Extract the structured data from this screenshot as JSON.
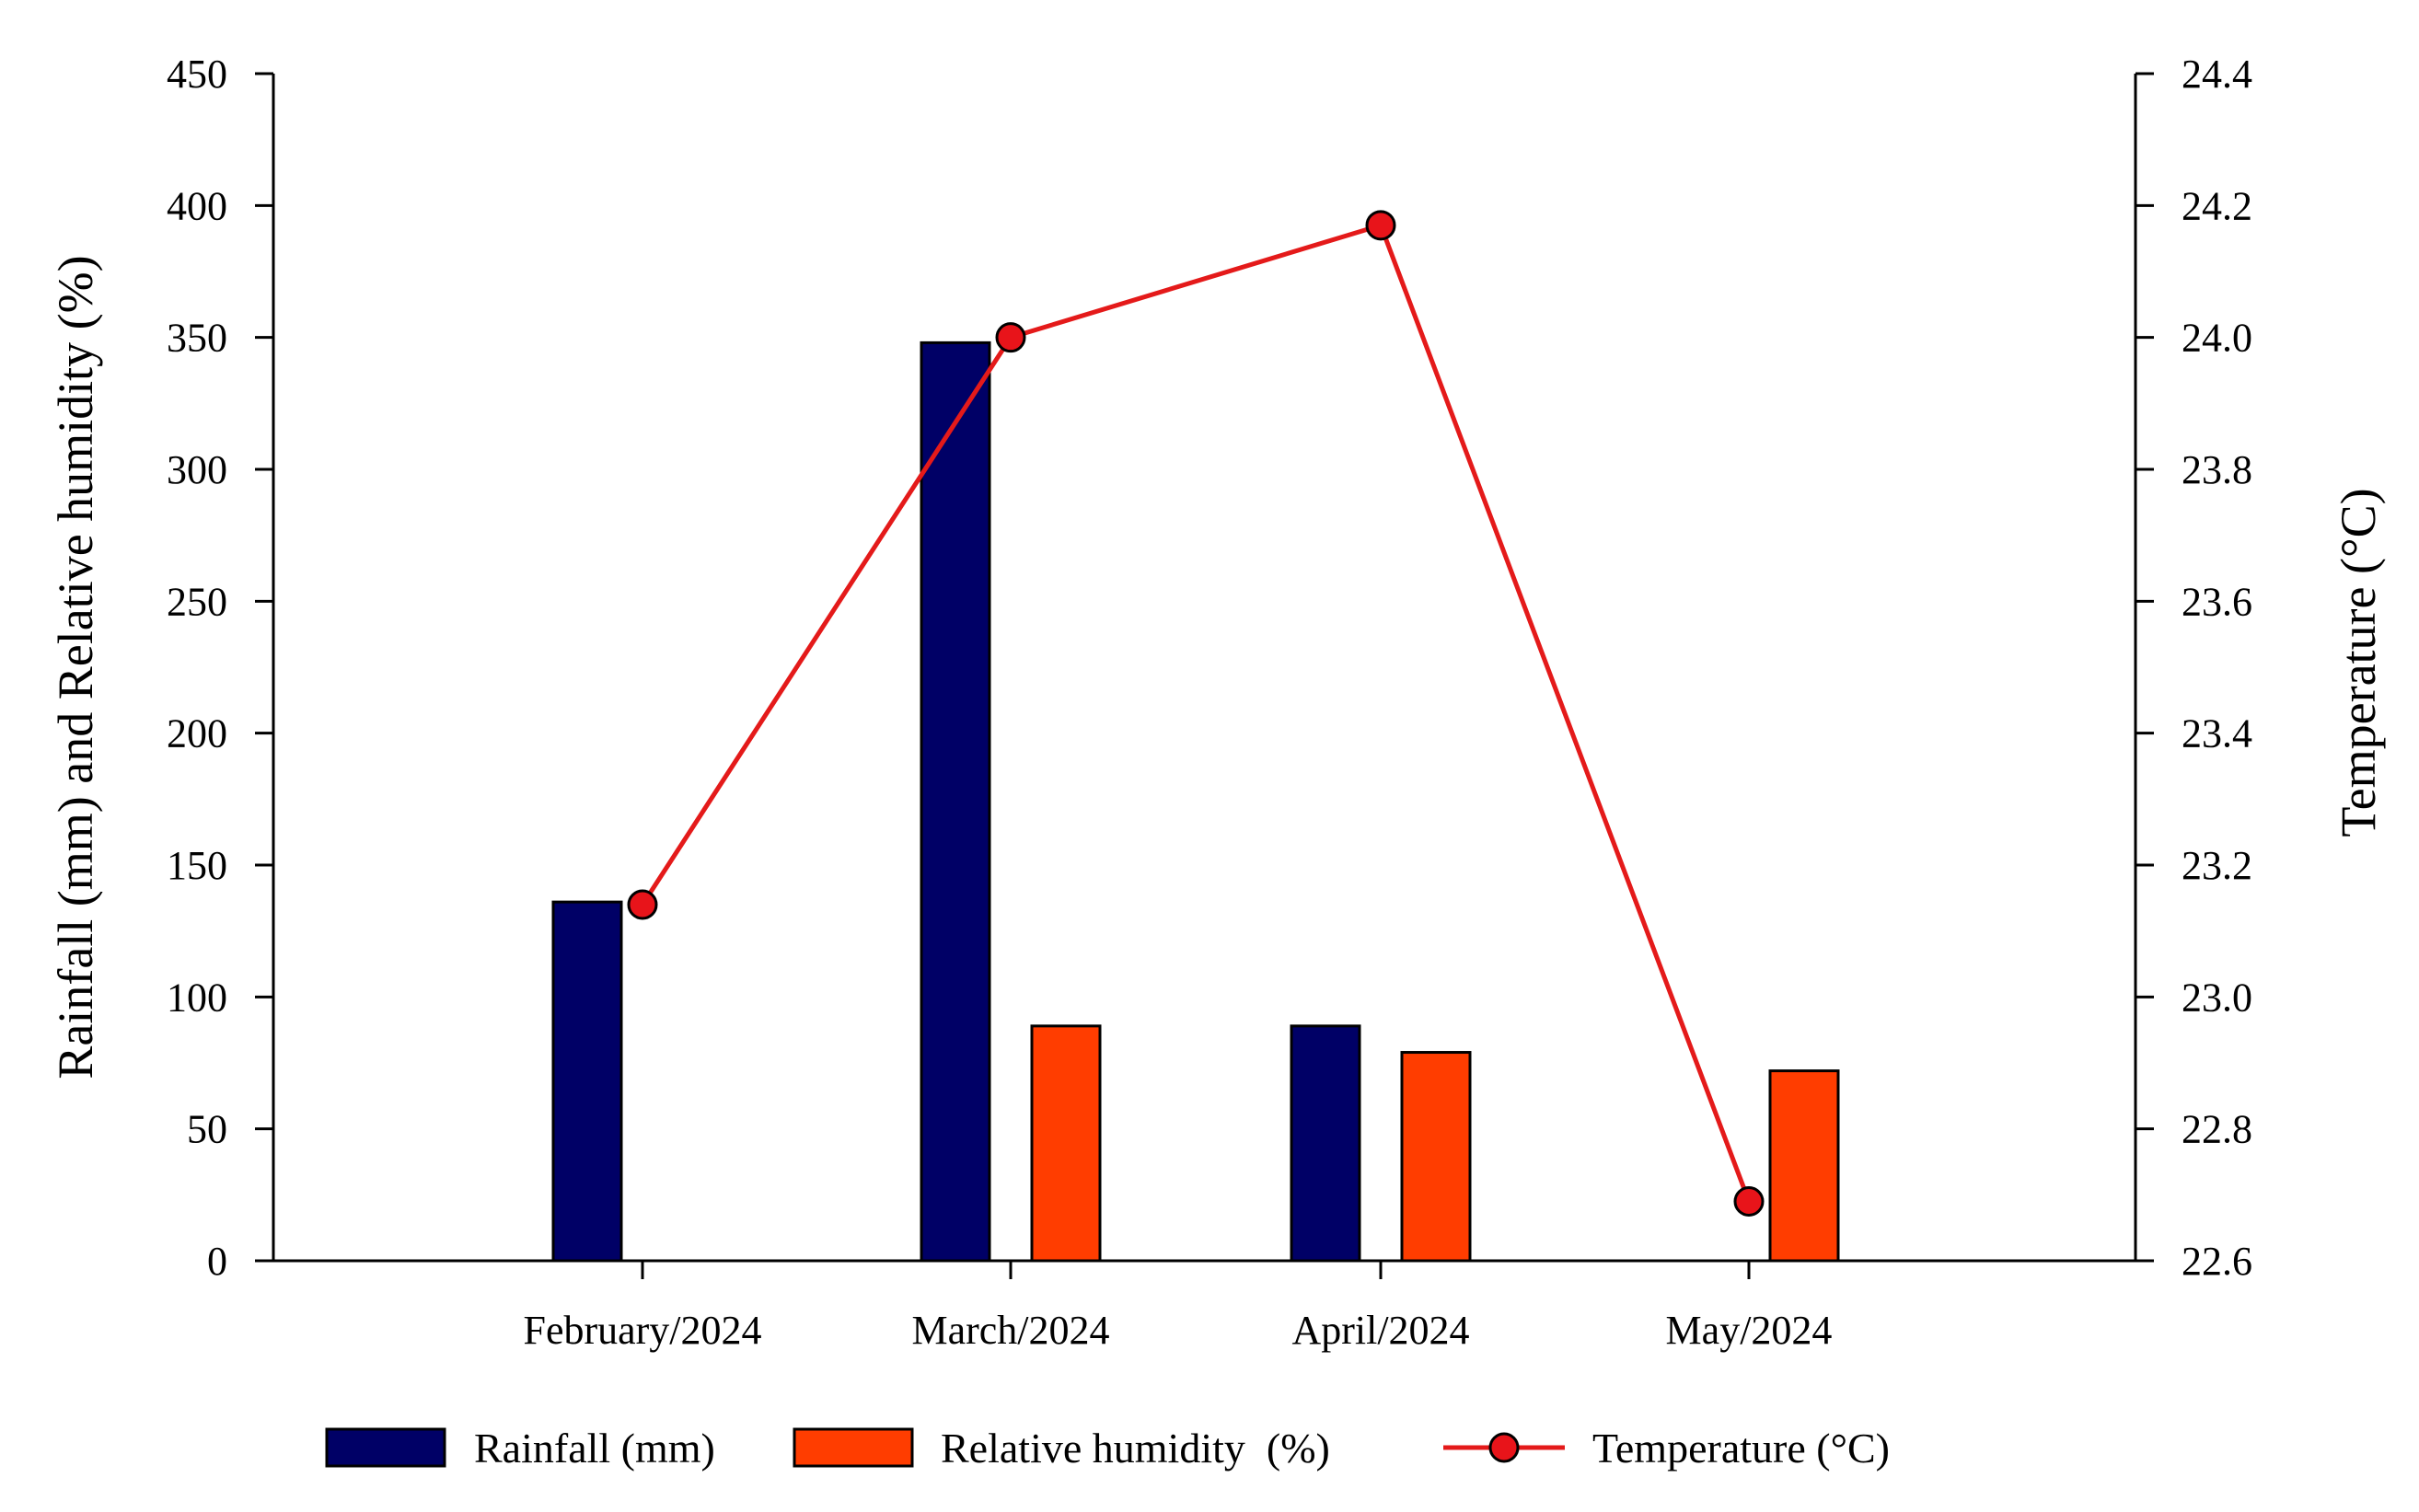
{
  "chart_data": {
    "type": "bar",
    "categories": [
      "February/2024",
      "March/2024",
      "April/2024",
      "May/2024"
    ],
    "series": [
      {
        "name": "Rainfall (mm)",
        "type": "bar",
        "axis": "left",
        "color": "#000066",
        "values": [
          136,
          348,
          89,
          0
        ]
      },
      {
        "name": "Relative humidity  (%)",
        "type": "bar",
        "axis": "left",
        "color": "#ff3d00",
        "values": [
          0,
          89,
          79,
          72
        ]
      },
      {
        "name": "Temperature (°C)",
        "type": "line",
        "axis": "right",
        "color": "#e41a1a",
        "marker_color": "#e8141a",
        "values": [
          23.14,
          24.0,
          24.17,
          22.69
        ]
      }
    ],
    "y_left": {
      "label": "Rainfall (mm) and Relative humidity (%)",
      "range": [
        0,
        450
      ],
      "ticks": [
        0,
        50,
        100,
        150,
        200,
        250,
        300,
        350,
        400,
        450
      ]
    },
    "y_right": {
      "label": "Temperature (°C)",
      "range": [
        22.6,
        24.4
      ],
      "ticks": [
        "22.6",
        "22.8",
        "23.0",
        "23.2",
        "23.4",
        "23.6",
        "23.8",
        "24.0",
        "24.2",
        "24.4"
      ]
    },
    "legend": {
      "position": "bottom",
      "items": [
        "Rainfall (mm)",
        "Relative humidity  (%)",
        "Temperature (°C)"
      ]
    },
    "grid": false
  }
}
